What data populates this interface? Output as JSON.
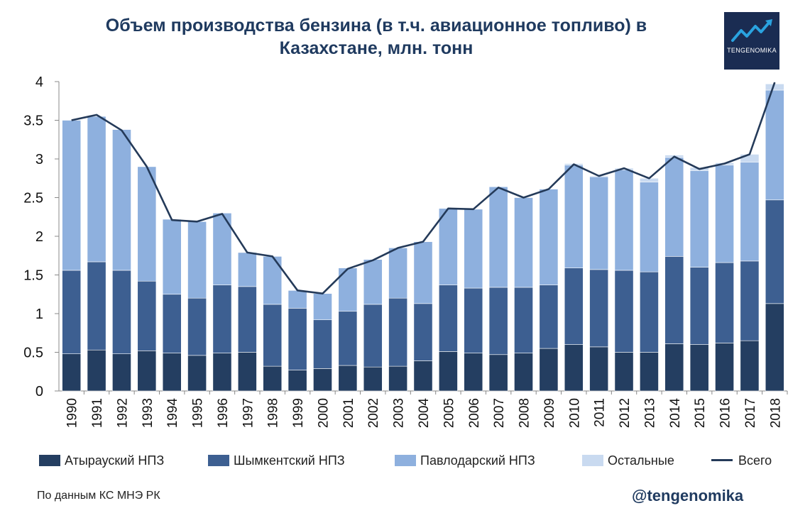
{
  "header": {
    "title_line1": "Объем производства бензина (в т.ч. авиационное топливо) в",
    "title_line2": "Казахстане, млн. тонн"
  },
  "logo": {
    "text": "TENGENOMIKA",
    "icon": "trend-arrow-icon"
  },
  "footer": {
    "source": "По данным КС МНЭ РК",
    "handle": "@tengenomika"
  },
  "colors": {
    "atyrau": "#243e61",
    "shymkent": "#3d5f91",
    "pavlodar": "#8eb0de",
    "others": "#c9daf0",
    "total": "#243a59"
  },
  "chart_data": {
    "type": "bar",
    "stacked": true,
    "title": "Объем производства бензина (в т.ч. авиационное топливо) в Казахстане, млн. тонн",
    "xlabel": "",
    "ylabel": "",
    "ylim": [
      0,
      4
    ],
    "yticks": [
      "0",
      "0.5",
      "1",
      "1.5",
      "2",
      "2.5",
      "3",
      "3.5",
      "4"
    ],
    "grid": false,
    "legend_position": "bottom",
    "categories": [
      "1990",
      "1991",
      "1992",
      "1993",
      "1994",
      "1995",
      "1996",
      "1997",
      "1998",
      "1999",
      "2000",
      "2001",
      "2002",
      "2003",
      "2004",
      "2005",
      "2006",
      "2007",
      "2008",
      "2009",
      "2010",
      "2011",
      "2012",
      "2013",
      "2014",
      "2015",
      "2016",
      "2017",
      "2018"
    ],
    "series": [
      {
        "name": "Атырауский НПЗ",
        "type": "bar",
        "values": [
          0.48,
          0.53,
          0.48,
          0.52,
          0.49,
          0.46,
          0.49,
          0.5,
          0.32,
          0.27,
          0.29,
          0.33,
          0.31,
          0.32,
          0.39,
          0.51,
          0.49,
          0.47,
          0.49,
          0.55,
          0.6,
          0.57,
          0.5,
          0.5,
          0.61,
          0.6,
          0.62,
          0.65,
          1.13
        ]
      },
      {
        "name": "Шымкентский НПЗ",
        "type": "bar",
        "values": [
          1.08,
          1.14,
          1.08,
          0.9,
          0.76,
          0.74,
          0.88,
          0.85,
          0.8,
          0.8,
          0.63,
          0.7,
          0.81,
          0.88,
          0.74,
          0.86,
          0.84,
          0.87,
          0.85,
          0.82,
          0.99,
          1.0,
          1.06,
          1.04,
          1.13,
          1.0,
          1.04,
          1.03,
          1.34
        ]
      },
      {
        "name": "Павлодарский НПЗ",
        "type": "bar",
        "values": [
          1.94,
          1.88,
          1.82,
          1.48,
          0.97,
          0.99,
          0.93,
          0.44,
          0.62,
          0.23,
          0.34,
          0.56,
          0.58,
          0.65,
          0.8,
          0.99,
          1.02,
          1.3,
          1.16,
          1.24,
          1.33,
          1.2,
          1.3,
          1.16,
          1.28,
          1.25,
          1.26,
          1.28,
          1.42
        ]
      },
      {
        "name": "Остальные",
        "type": "bar",
        "values": [
          0,
          0,
          0,
          0,
          0,
          0,
          0,
          0,
          0,
          0,
          0,
          0,
          0,
          0,
          0,
          0,
          0,
          0,
          0,
          0,
          0.02,
          0.01,
          0.02,
          0.05,
          0.03,
          0.04,
          0.03,
          0.1,
          0.08
        ]
      },
      {
        "name": "Всего",
        "type": "line",
        "values": [
          3.5,
          3.57,
          3.37,
          2.9,
          2.21,
          2.19,
          2.29,
          1.79,
          1.74,
          1.3,
          1.26,
          1.58,
          1.69,
          1.85,
          1.93,
          2.36,
          2.35,
          2.63,
          2.5,
          2.61,
          2.93,
          2.78,
          2.88,
          2.75,
          3.03,
          2.87,
          2.94,
          3.06,
          3.99
        ]
      }
    ]
  }
}
